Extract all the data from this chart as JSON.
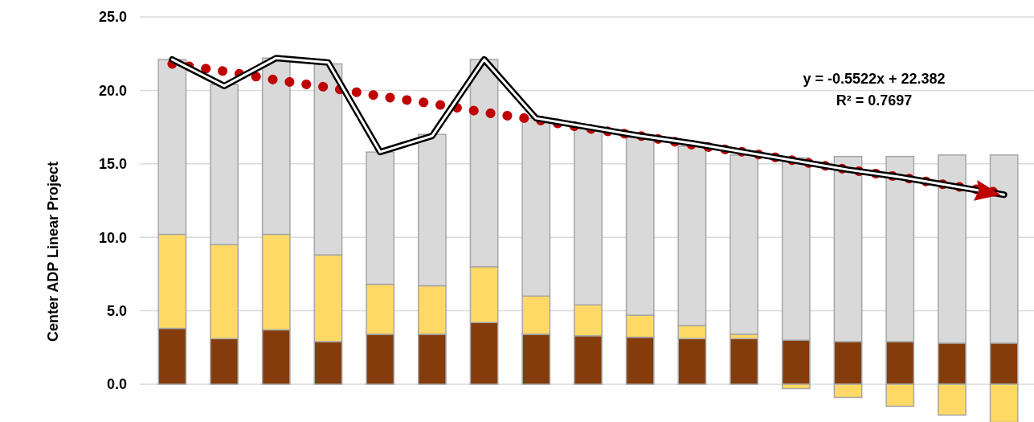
{
  "chart_data": {
    "type": "bar",
    "stacked": true,
    "ylabel": "Center ADP Linear Project",
    "annotations": [
      "y = -0.5522x + 22.382",
      "R² = 0.7697"
    ],
    "categories": [
      null,
      null,
      null,
      null,
      null,
      null,
      null,
      null,
      null,
      null,
      null,
      null,
      null,
      null,
      null,
      null,
      null
    ],
    "series": [
      {
        "color": "#843c0c",
        "values": [
          3.8,
          3.1,
          3.7,
          2.9,
          3.4,
          3.4,
          4.2,
          3.4,
          3.3,
          3.2,
          3.1,
          3.1,
          3.0,
          2.9,
          2.9,
          2.8,
          2.8
        ]
      },
      {
        "color": "#ffd966",
        "values": [
          6.4,
          6.4,
          6.5,
          5.9,
          3.4,
          3.3,
          3.8,
          2.6,
          2.1,
          1.5,
          0.9,
          0.3,
          -0.3,
          -0.9,
          -1.5,
          -2.1,
          -2.6
        ]
      },
      {
        "color": "#d9d9d9",
        "values": [
          11.9,
          10.9,
          12.0,
          13.0,
          9.0,
          10.3,
          14.1,
          12.1,
          12.0,
          12.1,
          12.2,
          12.2,
          12.4,
          12.6,
          12.6,
          12.8,
          12.8
        ]
      },
      {
        "type": "line",
        "color": "#000000",
        "values": [
          22.1,
          20.3,
          22.2,
          21.9,
          15.8,
          16.9,
          22.1,
          18.1,
          17.5,
          16.9,
          16.4,
          15.8,
          15.2,
          14.6,
          14.1,
          13.5,
          12.9
        ]
      },
      {
        "type": "line",
        "color": "#c00000",
        "line_style": "dotted",
        "values": [
          21.8,
          21.3,
          20.7,
          20.2,
          19.6,
          19.1,
          18.5,
          18.0,
          17.4,
          16.9,
          16.3,
          15.8,
          15.2,
          14.6,
          14.1,
          13.5,
          13.0
        ]
      }
    ],
    "ylim": [
      -2.6,
      25
    ],
    "yticks": [
      {
        "value": 0,
        "label": "0.0"
      },
      {
        "value": 5,
        "label": "5.0"
      },
      {
        "value": 10,
        "label": "10.0"
      },
      {
        "value": 15,
        "label": "15.0"
      },
      {
        "value": 20,
        "label": "20.0"
      },
      {
        "value": 25,
        "label": "25.0"
      }
    ],
    "grid": "y"
  }
}
